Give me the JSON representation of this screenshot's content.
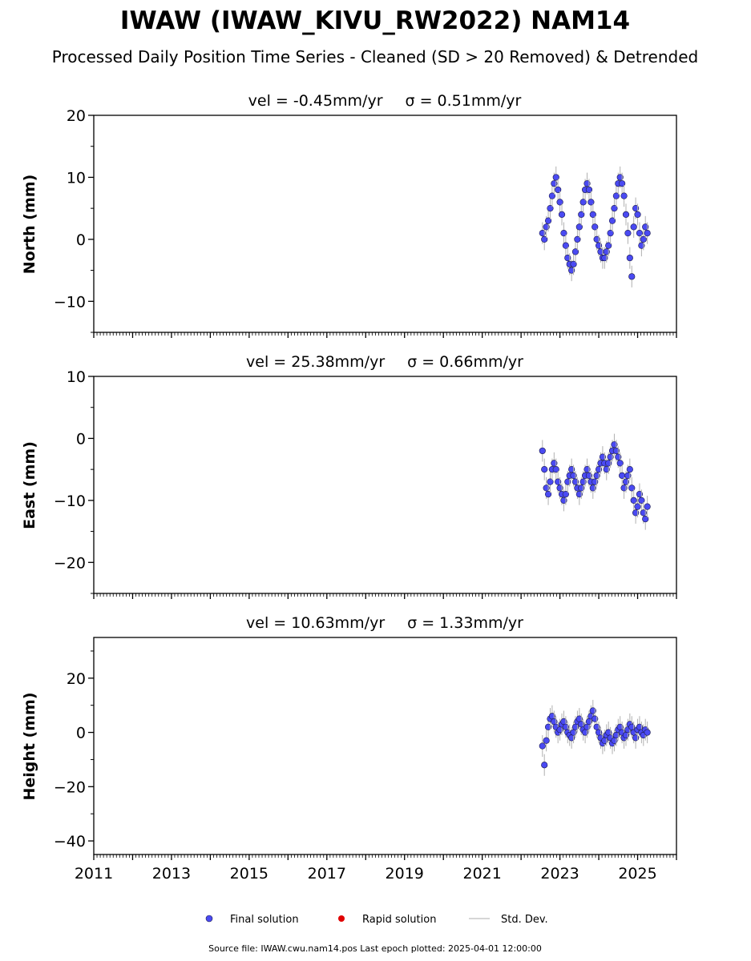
{
  "figure": {
    "title": "IWAW (IWAW_KIVU_RW2022) NAM14",
    "subtitle": "Processed Daily Position Time Series - Cleaned (SD > 20 Removed) & Detrended",
    "footer": "Source file: IWAW.cwu.nam14.pos  Last epoch plotted: 2025-04-01 12:00:00"
  },
  "legend": {
    "final_label": "Final solution",
    "rapid_label": "Rapid solution",
    "sd_label": "Std. Dev."
  },
  "colors": {
    "final": "#4a4af2",
    "rapid": "#e00000",
    "sd": "#b0b0b0"
  },
  "chart_data": [
    {
      "type": "scatter",
      "title_vel": "vel = -0.45mm/yr",
      "title_sigma": "σ = 0.51mm/yr",
      "ylabel": "North (mm)",
      "xlim": [
        2011.0,
        2026.0
      ],
      "ylim": [
        -15,
        20
      ],
      "yticks": [
        -10,
        0,
        10,
        20
      ],
      "yticklabels": [
        "−10",
        "0",
        "10",
        "20"
      ],
      "series": [
        {
          "legend": "final",
          "x": [
            2022.55,
            2022.6,
            2022.65,
            2022.7,
            2022.75,
            2022.8,
            2022.85,
            2022.9,
            2022.95,
            2023.0,
            2023.05,
            2023.1,
            2023.15,
            2023.2,
            2023.25,
            2023.3,
            2023.35,
            2023.4,
            2023.45,
            2023.5,
            2023.55,
            2023.6,
            2023.65,
            2023.7,
            2023.75,
            2023.8,
            2023.85,
            2023.9,
            2023.95,
            2024.0,
            2024.05,
            2024.1,
            2024.15,
            2024.2,
            2024.25,
            2024.3,
            2024.35,
            2024.4,
            2024.45,
            2024.5,
            2024.55,
            2024.6,
            2024.65,
            2024.7,
            2024.75,
            2024.8,
            2024.85,
            2024.9,
            2024.95,
            2025.0,
            2025.05,
            2025.1,
            2025.15,
            2025.2,
            2025.25
          ],
          "y": [
            1,
            0,
            2,
            3,
            5,
            7,
            9,
            10,
            8,
            6,
            4,
            1,
            -1,
            -3,
            -4,
            -5,
            -4,
            -2,
            0,
            2,
            4,
            6,
            8,
            9,
            8,
            6,
            4,
            2,
            0,
            -1,
            -2,
            -3,
            -3,
            -2,
            -1,
            1,
            3,
            5,
            7,
            9,
            10,
            9,
            7,
            4,
            1,
            -3,
            -6,
            2,
            5,
            4,
            1,
            -1,
            0,
            2,
            1
          ]
        }
      ],
      "x_labels_visible": false
    },
    {
      "type": "scatter",
      "title_vel": "vel = 25.38mm/yr",
      "title_sigma": "σ = 0.66mm/yr",
      "ylabel": "East (mm)",
      "xlim": [
        2011.0,
        2026.0
      ],
      "ylim": [
        -25,
        10
      ],
      "yticks": [
        -20,
        -10,
        0,
        10
      ],
      "yticklabels": [
        "−20",
        "−10",
        "0",
        "10"
      ],
      "series": [
        {
          "legend": "final",
          "x": [
            2022.55,
            2022.6,
            2022.65,
            2022.7,
            2022.75,
            2022.8,
            2022.85,
            2022.9,
            2022.95,
            2023.0,
            2023.05,
            2023.1,
            2023.15,
            2023.2,
            2023.25,
            2023.3,
            2023.35,
            2023.4,
            2023.45,
            2023.5,
            2023.55,
            2023.6,
            2023.65,
            2023.7,
            2023.75,
            2023.8,
            2023.85,
            2023.9,
            2023.95,
            2024.0,
            2024.05,
            2024.1,
            2024.15,
            2024.2,
            2024.25,
            2024.3,
            2024.35,
            2024.4,
            2024.45,
            2024.5,
            2024.55,
            2024.6,
            2024.65,
            2024.7,
            2024.75,
            2024.8,
            2024.85,
            2024.9,
            2024.95,
            2025.0,
            2025.05,
            2025.1,
            2025.15,
            2025.2,
            2025.25
          ],
          "y": [
            -2,
            -5,
            -8,
            -9,
            -7,
            -5,
            -4,
            -5,
            -7,
            -8,
            -9,
            -10,
            -9,
            -7,
            -6,
            -5,
            -6,
            -7,
            -8,
            -9,
            -8,
            -7,
            -6,
            -5,
            -6,
            -7,
            -8,
            -7,
            -6,
            -5,
            -4,
            -3,
            -4,
            -5,
            -4,
            -3,
            -2,
            -1,
            -2,
            -3,
            -4,
            -6,
            -8,
            -7,
            -6,
            -5,
            -8,
            -10,
            -12,
            -11,
            -9,
            -10,
            -12,
            -13,
            -11
          ]
        }
      ],
      "x_labels_visible": false
    },
    {
      "type": "scatter",
      "title_vel": "vel = 10.63mm/yr",
      "title_sigma": "σ = 1.33mm/yr",
      "ylabel": "Height (mm)",
      "xlim": [
        2011.0,
        2026.0
      ],
      "ylim": [
        -45,
        35
      ],
      "yticks": [
        -40,
        -20,
        0,
        20
      ],
      "yticklabels": [
        "−40",
        "−20",
        "0",
        "20"
      ],
      "series": [
        {
          "legend": "final",
          "x": [
            2022.55,
            2022.6,
            2022.65,
            2022.7,
            2022.75,
            2022.8,
            2022.85,
            2022.9,
            2022.95,
            2023.0,
            2023.05,
            2023.1,
            2023.15,
            2023.2,
            2023.25,
            2023.3,
            2023.35,
            2023.4,
            2023.45,
            2023.5,
            2023.55,
            2023.6,
            2023.65,
            2023.7,
            2023.75,
            2023.8,
            2023.85,
            2023.9,
            2023.95,
            2024.0,
            2024.05,
            2024.1,
            2024.15,
            2024.2,
            2024.25,
            2024.3,
            2024.35,
            2024.4,
            2024.45,
            2024.5,
            2024.55,
            2024.6,
            2024.65,
            2024.7,
            2024.75,
            2024.8,
            2024.85,
            2024.9,
            2024.95,
            2025.0,
            2025.05,
            2025.1,
            2025.15,
            2025.2,
            2025.25
          ],
          "y": [
            -5,
            -12,
            -3,
            2,
            5,
            6,
            4,
            2,
            0,
            1,
            3,
            4,
            2,
            0,
            -1,
            -2,
            0,
            2,
            4,
            5,
            3,
            1,
            0,
            2,
            4,
            6,
            8,
            5,
            2,
            0,
            -2,
            -4,
            -3,
            -1,
            0,
            -2,
            -4,
            -3,
            -1,
            1,
            2,
            0,
            -2,
            -1,
            1,
            3,
            2,
            0,
            -2,
            1,
            2,
            0,
            -1,
            1,
            0
          ]
        }
      ],
      "x_labels_visible": true
    }
  ],
  "xaxis": {
    "ticks": [
      2011,
      2013,
      2015,
      2017,
      2019,
      2021,
      2023,
      2025
    ],
    "ticklabels": [
      "2011",
      "2013",
      "2015",
      "2017",
      "2019",
      "2021",
      "2023",
      "2025"
    ]
  }
}
